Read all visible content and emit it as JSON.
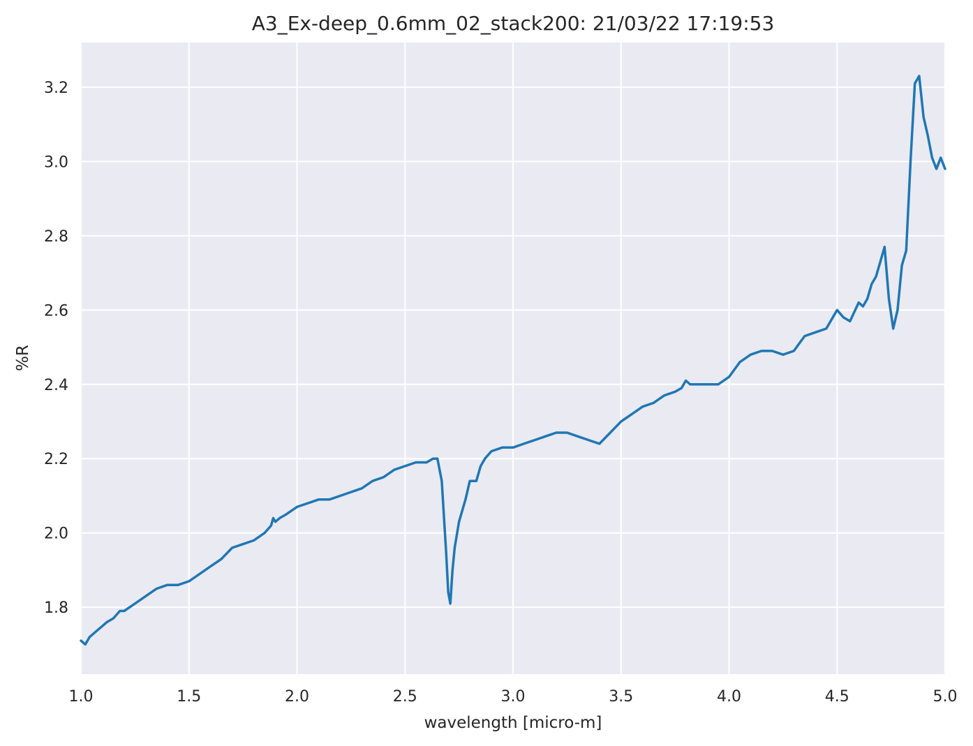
{
  "chart_data": {
    "type": "line",
    "title": "A3_Ex-deep_0.6mm_02_stack200:  21/03/22 17:19:53",
    "xlabel": "wavelength [micro-m]",
    "ylabel": "%R",
    "xlim": [
      1.0,
      5.0
    ],
    "ylim": [
      1.62,
      3.32
    ],
    "xticks": [
      1.0,
      1.5,
      2.0,
      2.5,
      3.0,
      3.5,
      4.0,
      4.5,
      5.0
    ],
    "xtick_labels": [
      "1.0",
      "1.5",
      "2.0",
      "2.5",
      "3.0",
      "3.5",
      "4.0",
      "4.5",
      "5.0"
    ],
    "yticks": [
      1.8,
      2.0,
      2.2,
      2.4,
      2.6,
      2.8,
      3.0,
      3.2
    ],
    "ytick_labels": [
      "1.8",
      "2.0",
      "2.2",
      "2.4",
      "2.6",
      "2.8",
      "3.0",
      "3.2"
    ],
    "grid": true,
    "background": "#eaeaf2",
    "series": [
      {
        "color": "#1f77b4",
        "x": [
          1.0,
          1.02,
          1.04,
          1.06,
          1.08,
          1.1,
          1.12,
          1.15,
          1.18,
          1.2,
          1.25,
          1.3,
          1.35,
          1.4,
          1.45,
          1.5,
          1.55,
          1.6,
          1.65,
          1.7,
          1.75,
          1.8,
          1.85,
          1.88,
          1.89,
          1.9,
          1.92,
          1.95,
          2.0,
          2.05,
          2.1,
          2.15,
          2.2,
          2.25,
          2.3,
          2.35,
          2.4,
          2.45,
          2.5,
          2.55,
          2.6,
          2.63,
          2.65,
          2.67,
          2.69,
          2.7,
          2.71,
          2.72,
          2.73,
          2.75,
          2.78,
          2.8,
          2.83,
          2.85,
          2.87,
          2.9,
          2.95,
          3.0,
          3.05,
          3.1,
          3.15,
          3.2,
          3.25,
          3.3,
          3.35,
          3.4,
          3.45,
          3.5,
          3.55,
          3.6,
          3.65,
          3.7,
          3.75,
          3.78,
          3.8,
          3.82,
          3.85,
          3.9,
          3.95,
          4.0,
          4.05,
          4.1,
          4.15,
          4.2,
          4.25,
          4.3,
          4.35,
          4.4,
          4.45,
          4.5,
          4.53,
          4.56,
          4.6,
          4.62,
          4.64,
          4.66,
          4.68,
          4.7,
          4.72,
          4.74,
          4.76,
          4.78,
          4.8,
          4.82,
          4.84,
          4.86,
          4.88,
          4.9,
          4.92,
          4.94,
          4.96,
          4.98,
          5.0
        ],
        "y": [
          1.71,
          1.7,
          1.72,
          1.73,
          1.74,
          1.75,
          1.76,
          1.77,
          1.79,
          1.79,
          1.81,
          1.83,
          1.85,
          1.86,
          1.86,
          1.87,
          1.89,
          1.91,
          1.93,
          1.96,
          1.97,
          1.98,
          2.0,
          2.02,
          2.04,
          2.03,
          2.04,
          2.05,
          2.07,
          2.08,
          2.09,
          2.09,
          2.1,
          2.11,
          2.12,
          2.14,
          2.15,
          2.17,
          2.18,
          2.19,
          2.19,
          2.2,
          2.2,
          2.14,
          1.95,
          1.84,
          1.81,
          1.9,
          1.96,
          2.03,
          2.09,
          2.14,
          2.14,
          2.18,
          2.2,
          2.22,
          2.23,
          2.23,
          2.24,
          2.25,
          2.26,
          2.27,
          2.27,
          2.26,
          2.25,
          2.24,
          2.27,
          2.3,
          2.32,
          2.34,
          2.35,
          2.37,
          2.38,
          2.39,
          2.41,
          2.4,
          2.4,
          2.4,
          2.4,
          2.42,
          2.46,
          2.48,
          2.49,
          2.49,
          2.48,
          2.49,
          2.53,
          2.54,
          2.55,
          2.6,
          2.58,
          2.57,
          2.62,
          2.61,
          2.63,
          2.67,
          2.69,
          2.73,
          2.77,
          2.63,
          2.55,
          2.6,
          2.72,
          2.76,
          3.0,
          3.21,
          3.23,
          3.12,
          3.07,
          3.01,
          2.98,
          3.01,
          2.98
        ]
      }
    ]
  }
}
